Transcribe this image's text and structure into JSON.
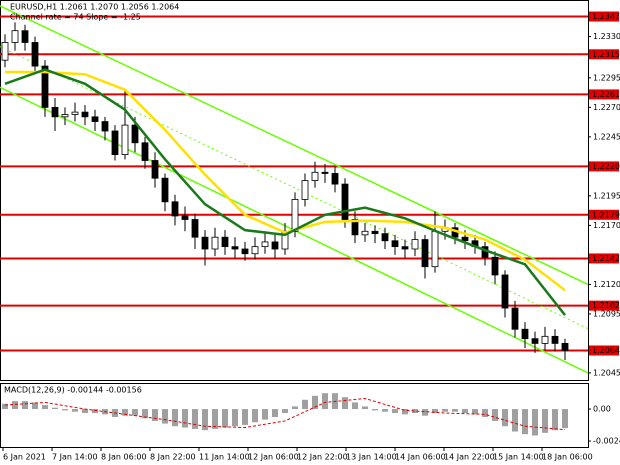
{
  "chart_data": [
    {
      "type": "candlestick",
      "title": "EURUSD,H1  1.2061 1.2070 1.2056 1.2064",
      "subtitle": "Channel rate = 74 Slope = -1.25",
      "candles": [
        [
          1.231,
          1.2332,
          1.2304,
          1.2325
        ],
        [
          1.2325,
          1.2342,
          1.2318,
          1.2335
        ],
        [
          1.2335,
          1.234,
          1.2318,
          1.2325
        ],
        [
          1.2325,
          1.233,
          1.2298,
          1.2305
        ],
        [
          1.2305,
          1.231,
          1.2262,
          1.227
        ],
        [
          1.227,
          1.2278,
          1.225,
          1.2262
        ],
        [
          1.2262,
          1.227,
          1.2255,
          1.2264
        ],
        [
          1.2264,
          1.2274,
          1.2258,
          1.2266
        ],
        [
          1.2266,
          1.2272,
          1.2255,
          1.2262
        ],
        [
          1.2262,
          1.2268,
          1.225,
          1.2258
        ],
        [
          1.2258,
          1.2262,
          1.2242,
          1.225
        ],
        [
          1.225,
          1.2255,
          1.2225,
          1.223
        ],
        [
          1.223,
          1.2285,
          1.2226,
          1.2255
        ],
        [
          1.2255,
          1.2262,
          1.2232,
          1.224
        ],
        [
          1.224,
          1.2245,
          1.2218,
          1.2225
        ],
        [
          1.2225,
          1.2232,
          1.2202,
          1.221
        ],
        [
          1.221,
          1.2214,
          1.2182,
          1.219
        ],
        [
          1.219,
          1.2196,
          1.217,
          1.2178
        ],
        [
          1.2178,
          1.2186,
          1.2165,
          1.2175
        ],
        [
          1.2175,
          1.218,
          1.215,
          1.216
        ],
        [
          1.216,
          1.2166,
          1.2136,
          1.215
        ],
        [
          1.215,
          1.2168,
          1.2144,
          1.216
        ],
        [
          1.216,
          1.2166,
          1.2145,
          1.2152
        ],
        [
          1.2152,
          1.216,
          1.2142,
          1.215
        ],
        [
          1.215,
          1.2156,
          1.214,
          1.2146
        ],
        [
          1.2146,
          1.216,
          1.2141,
          1.2152
        ],
        [
          1.2152,
          1.2165,
          1.2146,
          1.2156
        ],
        [
          1.2156,
          1.2162,
          1.2142,
          1.215
        ],
        [
          1.215,
          1.2172,
          1.2145,
          1.2165
        ],
        [
          1.2165,
          1.2198,
          1.216,
          1.2192
        ],
        [
          1.2192,
          1.2214,
          1.2186,
          1.2208
        ],
        [
          1.2208,
          1.2224,
          1.2202,
          1.2215
        ],
        [
          1.2215,
          1.2222,
          1.2206,
          1.2214
        ],
        [
          1.2214,
          1.222,
          1.2198,
          1.2205
        ],
        [
          1.2205,
          1.221,
          1.2168,
          1.2175
        ],
        [
          1.2175,
          1.2182,
          1.2155,
          1.2162
        ],
        [
          1.2162,
          1.2172,
          1.2156,
          1.2165
        ],
        [
          1.2165,
          1.217,
          1.2155,
          1.2163
        ],
        [
          1.2163,
          1.2168,
          1.215,
          1.2157
        ],
        [
          1.2157,
          1.2162,
          1.2145,
          1.2152
        ],
        [
          1.2152,
          1.2158,
          1.2142,
          1.215
        ],
        [
          1.215,
          1.2165,
          1.2144,
          1.2158
        ],
        [
          1.2158,
          1.2162,
          1.2125,
          1.2135
        ],
        [
          1.2135,
          1.2182,
          1.213,
          1.2165
        ],
        [
          1.2165,
          1.2175,
          1.2158,
          1.2168
        ],
        [
          1.2168,
          1.2172,
          1.2154,
          1.216
        ],
        [
          1.216,
          1.2166,
          1.215,
          1.2157
        ],
        [
          1.2157,
          1.2162,
          1.2146,
          1.2152
        ],
        [
          1.2152,
          1.2156,
          1.2136,
          1.2143
        ],
        [
          1.2143,
          1.2148,
          1.212,
          1.2128
        ],
        [
          1.2128,
          1.2132,
          1.2092,
          1.21
        ],
        [
          1.21,
          1.2106,
          1.2075,
          1.2082
        ],
        [
          1.2082,
          1.2088,
          1.2066,
          1.2074
        ],
        [
          1.2074,
          1.208,
          1.2062,
          1.207
        ],
        [
          1.207,
          1.2084,
          1.2064,
          1.2076
        ],
        [
          1.2076,
          1.2082,
          1.2063,
          1.207
        ],
        [
          1.207,
          1.2074,
          1.2056,
          1.2064
        ]
      ],
      "x_labels": [
        "6 Jan 2021",
        "7 Jan 14:00",
        "8 Jan 06:00",
        "8 Jan 22:00",
        "11 Jan 14:00",
        "12 Jan 06:00",
        "12 Jan 22:00",
        "13 Jan 14:00",
        "14 Jan 06:00",
        "14 Jan 22:00",
        "15 Jan 14:00",
        "18 Jan 06:00"
      ],
      "ylim": [
        1.2039,
        1.2361
      ],
      "yticks": [
        {
          "value": 1.233,
          "label": "1.2330"
        },
        {
          "value": 1.2295,
          "label": "1.2295"
        },
        {
          "value": 1.227,
          "label": "1.2270"
        },
        {
          "value": 1.2245,
          "label": "1.2245"
        },
        {
          "value": 1.2195,
          "label": "1.2195"
        },
        {
          "value": 1.217,
          "label": "1.2170"
        },
        {
          "value": 1.212,
          "label": "1.2120"
        },
        {
          "value": 1.2095,
          "label": "1.2095"
        },
        {
          "value": 1.2045,
          "label": "1.2045"
        }
      ],
      "levels": [
        {
          "value": 1.2347,
          "label": "1.2347"
        },
        {
          "value": 1.2315,
          "label": "1.2315"
        },
        {
          "value": 1.2281,
          "label": "1.2281"
        },
        {
          "value": 1.222,
          "label": "1.2220"
        },
        {
          "value": 1.2179,
          "label": "1.2179"
        },
        {
          "value": 1.2142,
          "label": "1.2142"
        },
        {
          "value": 1.2102,
          "label": "1.2102"
        },
        {
          "value": 1.2064,
          "label": "1.2064"
        }
      ],
      "level_color": "#e00000",
      "ma": [
        {
          "color": "#ffe000",
          "x": [
            0,
            4,
            8,
            12,
            16,
            20,
            24,
            28,
            32,
            36,
            40,
            44,
            48,
            52,
            56
          ],
          "values": [
            1.23,
            1.23,
            1.2298,
            1.2285,
            1.2251,
            1.2213,
            1.2179,
            1.2164,
            1.2173,
            1.2174,
            1.2173,
            1.2168,
            1.2158,
            1.2141,
            1.2115
          ]
        },
        {
          "color": "#1a7a1a",
          "x": [
            0,
            4,
            8,
            12,
            16,
            20,
            24,
            28,
            32,
            36,
            40,
            44,
            48,
            52,
            56
          ],
          "values": [
            1.229,
            1.2302,
            1.229,
            1.2268,
            1.2226,
            1.2188,
            1.2166,
            1.2162,
            1.2179,
            1.2185,
            1.2176,
            1.2162,
            1.2149,
            1.2137,
            1.2094
          ]
        }
      ],
      "channel": {
        "color": "#66ff00",
        "upper": [
          1.2356,
          1.212
        ],
        "lower": [
          1.2287,
          1.2045
        ]
      }
    },
    {
      "type": "macd",
      "title": "MACD(12,26,9) -0.00144 -0.00156",
      "histogram": [
        0.0004,
        0.0006,
        0.0006,
        0.0005,
        0.0003,
        0.0001,
        -0.0001,
        -0.0002,
        -0.0003,
        -0.0003,
        -0.0004,
        -0.0006,
        -0.0005,
        -0.0005,
        -0.0007,
        -0.0009,
        -0.0011,
        -0.0013,
        -0.0014,
        -0.0015,
        -0.0016,
        -0.0015,
        -0.0014,
        -0.0013,
        -0.0012,
        -0.001,
        -0.0008,
        -0.0006,
        -0.0003,
        0.0002,
        0.0007,
        0.001,
        0.0012,
        0.0012,
        0.0009,
        0.0005,
        0.0002,
        -0.0001,
        -0.0002,
        -0.0003,
        -0.0004,
        -0.0003,
        -0.0005,
        -0.0003,
        -0.0002,
        -0.0002,
        -0.0003,
        -0.0004,
        -0.0006,
        -0.0009,
        -0.0013,
        -0.0017,
        -0.0019,
        -0.002,
        -0.0018,
        -0.0016,
        -0.00144
      ],
      "histogram_color": "#a0a0a0",
      "signal": {
        "color": "#e00000",
        "x": [
          0,
          4,
          8,
          12,
          16,
          20,
          24,
          28,
          32,
          36,
          40,
          44,
          48,
          52,
          56
        ],
        "values": [
          0.0003,
          0.0005,
          0.0,
          -0.0004,
          -0.0008,
          -0.0013,
          -0.0014,
          -0.0009,
          0.0005,
          0.0008,
          -0.0001,
          -0.0003,
          -0.0004,
          -0.0013,
          -0.00156
        ]
      },
      "ylim": [
        -0.00287,
        0.00197
      ],
      "yticks": [
        {
          "value": 0,
          "label": "0.00"
        },
        -0.00242
      ]
    }
  ]
}
